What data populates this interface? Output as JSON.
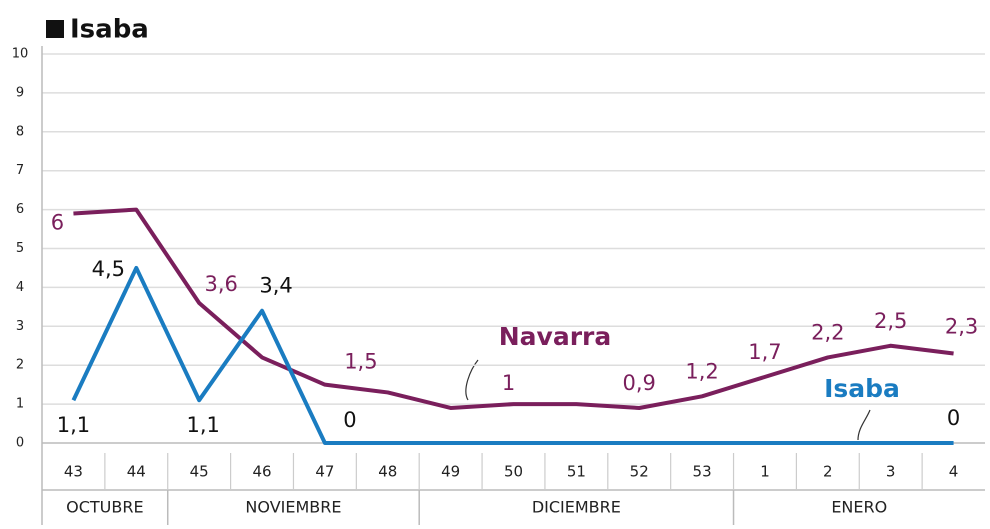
{
  "chart_data": {
    "type": "line",
    "title": "Isaba",
    "category_groups": [
      {
        "label": "OCTUBRE",
        "categories": [
          "43",
          "44"
        ]
      },
      {
        "label": "NOVIEMBRE",
        "categories": [
          "45",
          "46",
          "47",
          "48"
        ]
      },
      {
        "label": "DICIEMBRE",
        "categories": [
          "49",
          "50",
          "51",
          "52",
          "53"
        ]
      },
      {
        "label": "ENERO",
        "categories": [
          "1",
          "2",
          "3",
          "4"
        ]
      }
    ],
    "series": [
      {
        "name": "Navarra",
        "color": "#7a1f5c",
        "values": [
          5.9,
          6,
          3.6,
          2.2,
          1.5,
          1.3,
          0.9,
          1,
          1,
          0.9,
          1.2,
          1.7,
          2.2,
          2.5,
          2.3
        ],
        "value_labels": [
          "6",
          null,
          "3,6",
          null,
          "1,5",
          null,
          null,
          "1",
          null,
          "0,9",
          "1,2",
          "1,7",
          "2,2",
          "2,5",
          "2,3"
        ]
      },
      {
        "name": "Isaba",
        "color": "#1a7cc1",
        "values": [
          1.1,
          4.5,
          1.1,
          3.4,
          0,
          0,
          0,
          0,
          0,
          0,
          0,
          0,
          0,
          0,
          0
        ],
        "value_labels": [
          "1,1",
          "4,5",
          "1,1",
          "3,4",
          "0",
          null,
          null,
          null,
          null,
          null,
          null,
          null,
          null,
          null,
          "0"
        ]
      }
    ],
    "ylim": [
      0,
      10
    ],
    "yticks": [
      0,
      1,
      2,
      3,
      4,
      5,
      6,
      7,
      8,
      9,
      10
    ],
    "grid": true
  }
}
